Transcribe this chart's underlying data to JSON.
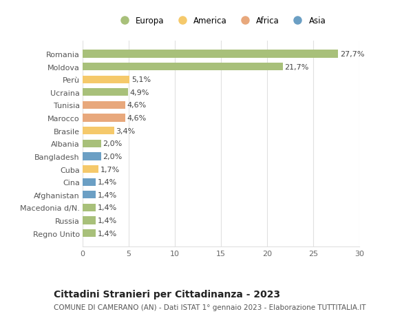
{
  "categories": [
    "Regno Unito",
    "Russia",
    "Macedonia d/N.",
    "Afghanistan",
    "Cina",
    "Cuba",
    "Bangladesh",
    "Albania",
    "Brasile",
    "Marocco",
    "Tunisia",
    "Ucraina",
    "Perù",
    "Moldova",
    "Romania"
  ],
  "values": [
    1.4,
    1.4,
    1.4,
    1.4,
    1.4,
    1.7,
    2.0,
    2.0,
    3.4,
    4.6,
    4.6,
    4.9,
    5.1,
    21.7,
    27.7
  ],
  "labels": [
    "1,4%",
    "1,4%",
    "1,4%",
    "1,4%",
    "1,4%",
    "1,7%",
    "2,0%",
    "2,0%",
    "3,4%",
    "4,6%",
    "4,6%",
    "4,9%",
    "5,1%",
    "21,7%",
    "27,7%"
  ],
  "colors": [
    "#a8c07a",
    "#a8c07a",
    "#a8c07a",
    "#6b9fc4",
    "#6b9fc4",
    "#f5c96b",
    "#6b9fc4",
    "#a8c07a",
    "#f5c96b",
    "#e8a87c",
    "#e8a87c",
    "#a8c07a",
    "#f5c96b",
    "#a8c07a",
    "#a8c07a"
  ],
  "legend_labels": [
    "Europa",
    "America",
    "Africa",
    "Asia"
  ],
  "legend_colors": [
    "#a8c07a",
    "#f5c96b",
    "#e8a87c",
    "#6b9fc4"
  ],
  "title": "Cittadini Stranieri per Cittadinanza - 2023",
  "subtitle": "COMUNE DI CAMERANO (AN) - Dati ISTAT 1° gennaio 2023 - Elaborazione TUTTITALIA.IT",
  "xlim": [
    0,
    30
  ],
  "xticks": [
    0,
    5,
    10,
    15,
    20,
    25,
    30
  ],
  "bg_color": "#ffffff",
  "grid_color": "#e0e0e0",
  "bar_height": 0.6,
  "title_fontsize": 10,
  "subtitle_fontsize": 7.5,
  "label_fontsize": 8,
  "tick_fontsize": 8,
  "legend_fontsize": 8.5
}
